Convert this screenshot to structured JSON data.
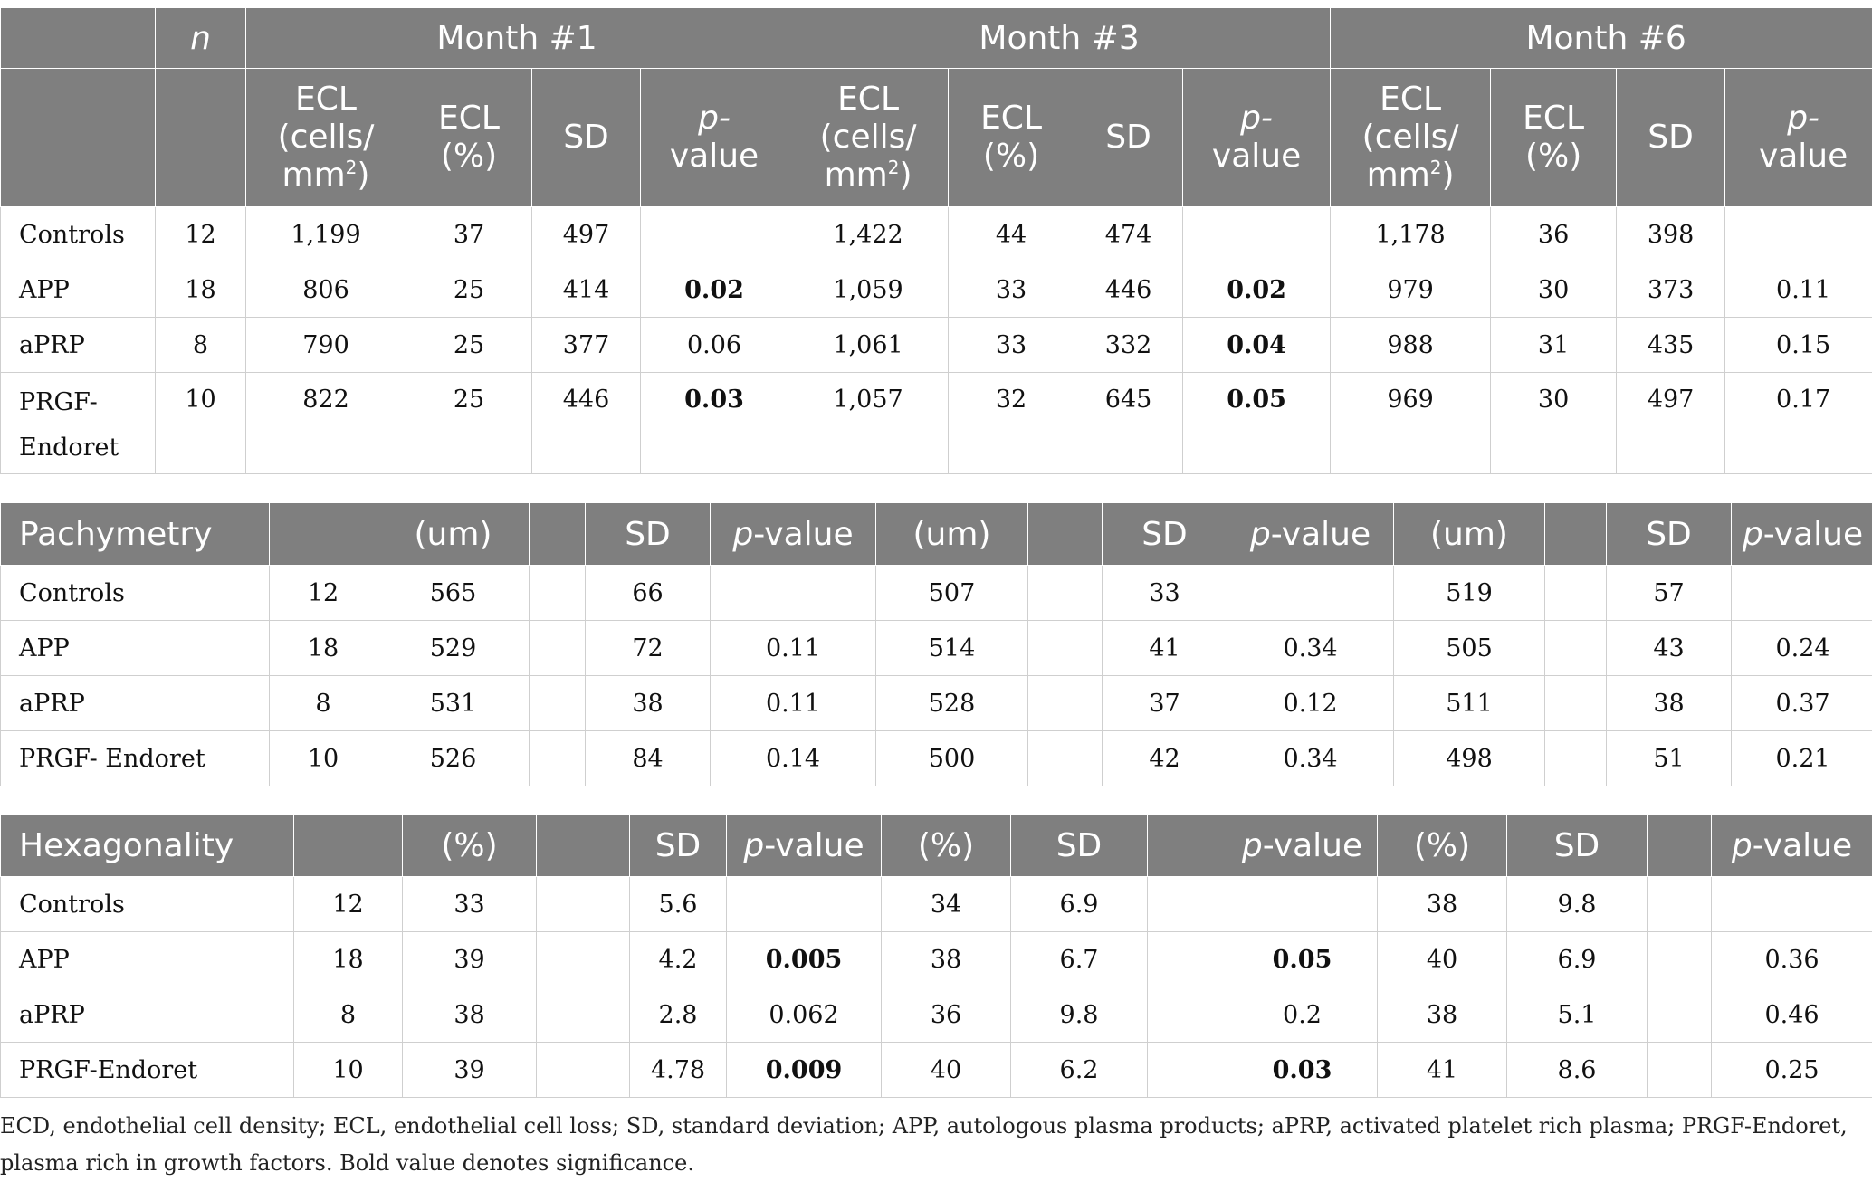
{
  "ecl_table": {
    "n_header": "n",
    "months": [
      "Month #1",
      "Month #3",
      "Month #6"
    ],
    "subheaders": {
      "ecl_cells_line1": "ECL",
      "ecl_cells_line2": "(cells/",
      "ecl_cells_line3": "mm",
      "ecl_cells_sup": "2",
      "ecl_cells_line3_end": ")",
      "ecl_pct_line1": "ECL",
      "ecl_pct_line2": "(%)",
      "sd": "SD",
      "p_line1": "p-",
      "p_line2": "value"
    },
    "rows": [
      {
        "label": "Controls",
        "n": "12",
        "cells": [
          [
            "1,199",
            "37",
            "497",
            ""
          ],
          [
            "1,422",
            "44",
            "474",
            ""
          ],
          [
            "1,178",
            "36",
            "398",
            ""
          ]
        ]
      },
      {
        "label": "APP",
        "n": "18",
        "cells": [
          [
            "806",
            "25",
            "414",
            "0.02"
          ],
          [
            "1,059",
            "33",
            "446",
            "0.02"
          ],
          [
            "979",
            "30",
            "373",
            "0.11"
          ]
        ]
      },
      {
        "label": "aPRP",
        "n": "8",
        "cells": [
          [
            "790",
            "25",
            "377",
            "0.06"
          ],
          [
            "1,061",
            "33",
            "332",
            "0.04"
          ],
          [
            "988",
            "31",
            "435",
            "0.15"
          ]
        ]
      },
      {
        "label_line1": "PRGF-",
        "label_line2": "Endoret",
        "n": "10",
        "cells": [
          [
            "822",
            "25",
            "446",
            "0.03"
          ],
          [
            "1,057",
            "32",
            "645",
            "0.05"
          ],
          [
            "969",
            "30",
            "497",
            "0.17"
          ]
        ]
      }
    ]
  },
  "pachymetry_table": {
    "title": "Pachymetry",
    "unit": "(um)",
    "sd": "SD",
    "p_italic": "p",
    "p_rest": "-value",
    "rows": [
      {
        "label": "Controls",
        "n": "12",
        "vals": [
          "565",
          "66",
          "",
          "507",
          "33",
          "",
          "519",
          "57",
          ""
        ]
      },
      {
        "label": "APP",
        "n": "18",
        "vals": [
          "529",
          "72",
          "0.11",
          "514",
          "41",
          "0.34",
          "505",
          "43",
          "0.24"
        ]
      },
      {
        "label": "aPRP",
        "n": "8",
        "vals": [
          "531",
          "38",
          "0.11",
          "528",
          "37",
          "0.12",
          "511",
          "38",
          "0.37"
        ]
      },
      {
        "label": "PRGF- Endoret",
        "n": "10",
        "vals": [
          "526",
          "84",
          "0.14",
          "500",
          "42",
          "0.34",
          "498",
          "51",
          "0.21"
        ]
      }
    ]
  },
  "hexagonality_table": {
    "title": "Hexagonality",
    "unit": "(%)",
    "sd": "SD",
    "p_italic": "p",
    "p_rest": "-value",
    "rows": [
      {
        "label": "Controls",
        "n": "12",
        "vals": [
          "33",
          "5.6",
          "",
          "34",
          "6.9",
          "",
          "38",
          "9.8",
          ""
        ]
      },
      {
        "label": "APP",
        "n": "18",
        "vals": [
          "39",
          "4.2",
          "0.005",
          "38",
          "6.7",
          "0.05",
          "40",
          "6.9",
          "0.36"
        ]
      },
      {
        "label": "aPRP",
        "n": "8",
        "vals": [
          "38",
          "2.8",
          "0.062",
          "36",
          "9.8",
          "0.2",
          "38",
          "5.1",
          "0.46"
        ]
      },
      {
        "label": "PRGF-Endoret",
        "n": "10",
        "vals": [
          "39",
          "4.78",
          "0.009",
          "40",
          "6.2",
          "0.03",
          "41",
          "8.6",
          "0.25"
        ]
      }
    ]
  },
  "footnote": "ECD, endothelial cell density; ECL, endothelial cell loss; SD, standard deviation; APP, autologous plasma products; aPRP, activated platelet rich plasma; PRGF-Endoret, plasma rich in growth factors. Bold value denotes significance.",
  "colors": {
    "header_bg": "#7f7f7f",
    "header_text": "#ffffff",
    "grid": "#cfcfcf"
  }
}
